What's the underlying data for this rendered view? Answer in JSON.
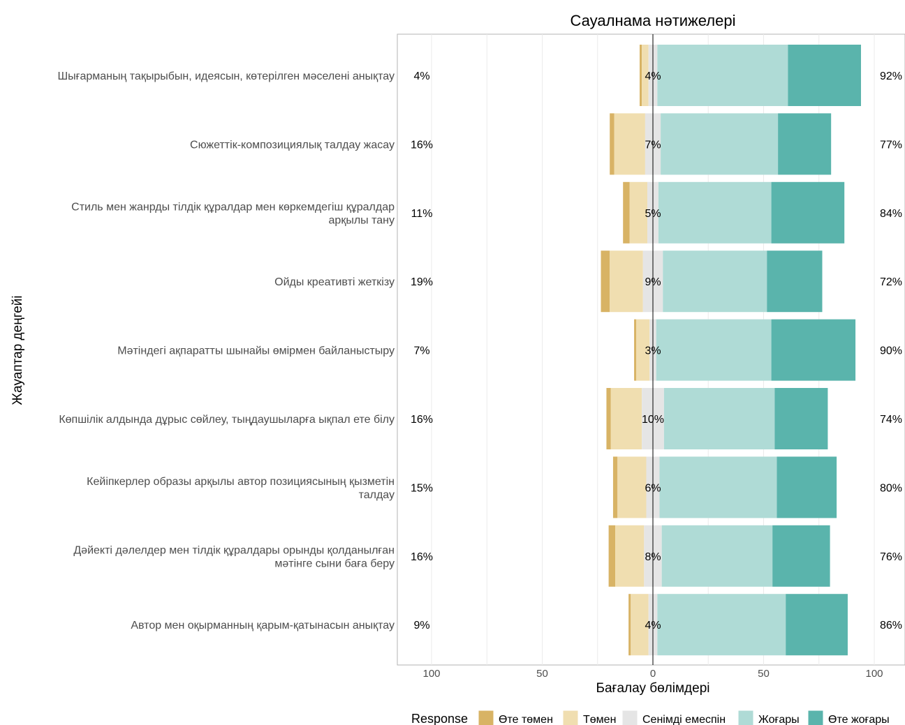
{
  "chart_data": {
    "type": "bar",
    "subtype": "diverging-stacked-likert",
    "title": "Сауалнама нәтижелері",
    "xlabel": "Бағалау бөлімдері",
    "ylabel": "Жауаптар деңгейі",
    "xlim": [
      -100,
      100
    ],
    "xticks": [
      -100,
      -50,
      0,
      50,
      100
    ],
    "xtick_labels": [
      "100",
      "50",
      "0",
      "50",
      "100"
    ],
    "grid": true,
    "legend": {
      "title": "Response",
      "position": "bottom",
      "items": [
        "Өте төмен",
        "Төмен",
        "Сенімді емеспін",
        "Жоғары",
        "Өте жоғары"
      ]
    },
    "colors": [
      "#d8b365",
      "#f0deb0",
      "#e5e5e5",
      "#afdbd6",
      "#5ab4ac"
    ],
    "categories": [
      "Шығарманың тақырыбын, идеясын, көтерілген мәселені анықтау",
      "Сюжеттік-композициялық талдау жасау",
      "Стиль мен жанрды тілдік құралдар мен көркемдегіш құралдар арқылы тану",
      "Ойды креативті жеткізу",
      "Мәтіндегі ақпаратты шынайы өмірмен байланыстыру",
      "Көпшілік алдында дұрыс сөйлеу, тыңдаушыларға ықпал ете білу",
      "Кейіпкерлер образы арқылы автор позициясының қызметін талдау",
      "Дәйекті дәлелдер мен тілдік құралдары орынды қолданылған мәтінге сыни баға беру",
      "Автор мен оқырманның қарым-қатынасын анықтау"
    ],
    "category_lines": [
      [
        "Шығарманың тақырыбын, идеясын, көтерілген мәселені анықтау"
      ],
      [
        "Сюжеттік-композициялық талдау жасау"
      ],
      [
        "Стиль мен жанрды тілдік құралдар мен көркемдегіш құралдар",
        "арқылы тану"
      ],
      [
        "Ойды креативті жеткізу"
      ],
      [
        "Мәтіндегі ақпаратты шынайы өмірмен байланыстыру"
      ],
      [
        "Көпшілік алдында дұрыс сөйлеу, тыңдаушыларға ықпал ете білу"
      ],
      [
        "Кейіпкерлер образы арқылы автор позициясының қызметін",
        "талдау"
      ],
      [
        "Дәйекті дәлелдер мен тілдік құралдары орынды қолданылған",
        "мәтінге сыни баға беру"
      ],
      [
        "Автор мен оқырманның қарым-қатынасын анықтау"
      ]
    ],
    "series": [
      {
        "name": "Өте төмен",
        "values": [
          1,
          2,
          3,
          4,
          1,
          2,
          2,
          3,
          1
        ]
      },
      {
        "name": "Төмен",
        "values": [
          3,
          14,
          8,
          15,
          6,
          14,
          13,
          13,
          8
        ]
      },
      {
        "name": "Сенімді емеспін",
        "values": [
          4,
          7,
          5,
          9,
          3,
          10,
          6,
          8,
          4
        ]
      },
      {
        "name": "Жоғары",
        "values": [
          59,
          53,
          51,
          47,
          52,
          50,
          53,
          50,
          58
        ]
      },
      {
        "name": "Өте жоғары",
        "values": [
          33,
          24,
          33,
          25,
          38,
          24,
          27,
          26,
          28
        ]
      }
    ],
    "left_labels": [
      "4%",
      "16%",
      "11%",
      "19%",
      "7%",
      "16%",
      "15%",
      "16%",
      "9%"
    ],
    "center_labels": [
      "4%",
      "7%",
      "5%",
      "9%",
      "3%",
      "10%",
      "6%",
      "8%",
      "4%"
    ],
    "right_labels": [
      "92%",
      "77%",
      "84%",
      "72%",
      "90%",
      "74%",
      "80%",
      "76%",
      "86%"
    ]
  }
}
